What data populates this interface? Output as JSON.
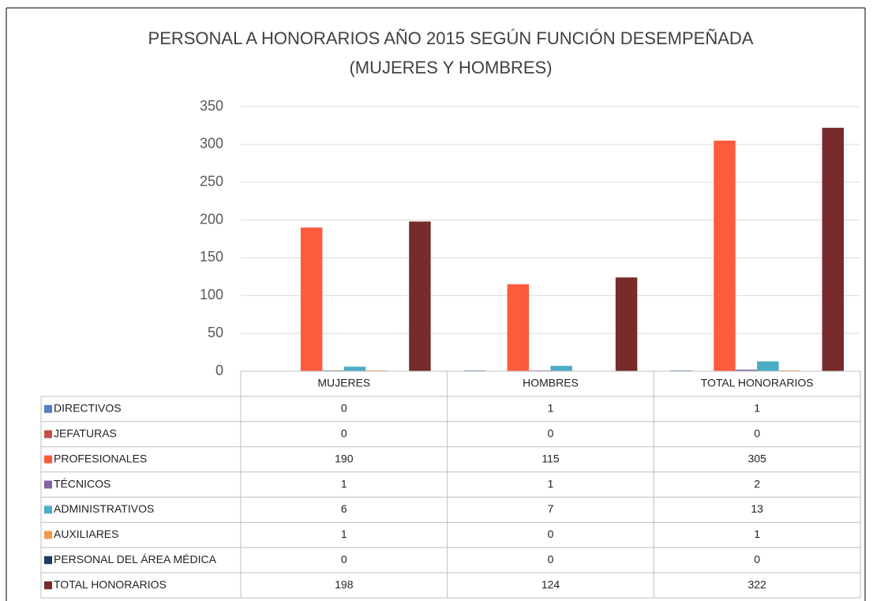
{
  "chart_data": {
    "type": "bar",
    "title": [
      "PERSONAL A HONORARIOS AÑO 2015 SEGÚN FUNCIÓN DESEMPEÑADA",
      "(MUJERES Y HOMBRES)"
    ],
    "categories": [
      "MUJERES",
      "HOMBRES",
      "TOTAL HONORARIOS"
    ],
    "series": [
      {
        "name": "DIRECTIVOS",
        "color": "#4f81bd",
        "values": [
          0,
          1,
          1
        ]
      },
      {
        "name": "JEFATURAS",
        "color": "#c0504d",
        "values": [
          0,
          0,
          0
        ]
      },
      {
        "name": "PROFESIONALES",
        "color": "#fe5a3c",
        "values": [
          190,
          115,
          305
        ]
      },
      {
        "name": "TÉCNICOS",
        "color": "#8064a2",
        "values": [
          1,
          1,
          2
        ]
      },
      {
        "name": "ADMINISTRATIVOS",
        "color": "#4bacc6",
        "values": [
          6,
          7,
          13
        ]
      },
      {
        "name": "AUXILIARES",
        "color": "#f79646",
        "values": [
          1,
          0,
          1
        ]
      },
      {
        "name": "PERSONAL DEL ÁREA MÉDICA",
        "color": "#1f3864",
        "values": [
          0,
          0,
          0
        ]
      },
      {
        "name": "TOTAL HONORARIOS",
        "color": "#772b2b",
        "values": [
          198,
          124,
          322
        ]
      }
    ],
    "ylim": [
      0,
      350
    ],
    "yticks": [
      0,
      50,
      100,
      150,
      200,
      250,
      300,
      350
    ],
    "grid": true,
    "data_table": true
  }
}
